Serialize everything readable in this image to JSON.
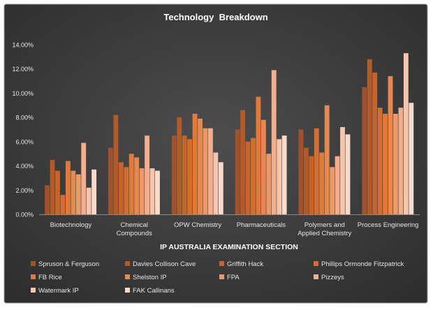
{
  "chart_data": {
    "type": "bar",
    "title": "Technology  Breakdown",
    "xlabel": "IP AUSTRALIA EXAMINATION SECTION",
    "ylabel": "",
    "ylim": [
      0,
      14
    ],
    "ytick_labels": [
      "0.00%",
      "2.00%",
      "4.00%",
      "6.00%",
      "8.00%",
      "10.00%",
      "12.00%",
      "14.00%"
    ],
    "grid": false,
    "legend_position": "bottom",
    "categories": [
      "Biotechnology",
      "Chemical\nCompounds",
      "OPW Chemistry",
      "Pharmaceuticals",
      "Polymers and\nApplied Chemistry",
      "Process Engineering"
    ],
    "series": [
      {
        "name": "Spruson & Ferguson",
        "color": "#a0522d",
        "values": [
          2.4,
          5.5,
          6.5,
          7.0,
          7.0,
          10.5
        ]
      },
      {
        "name": "Davies Collison Cave",
        "color": "#b25a2a",
        "values": [
          4.5,
          8.2,
          8.0,
          8.6,
          5.5,
          12.8
        ]
      },
      {
        "name": "Griffith Hack",
        "color": "#c8642a",
        "values": [
          3.6,
          4.3,
          6.5,
          6.0,
          4.8,
          11.7
        ]
      },
      {
        "name": "Phillips Ormonde Fitzpatrick",
        "color": "#d36e2e",
        "values": [
          1.6,
          3.9,
          6.2,
          6.3,
          7.1,
          8.8
        ]
      },
      {
        "name": "FB Rice",
        "color": "#e07a38",
        "values": [
          4.4,
          5.0,
          8.3,
          9.7,
          5.1,
          8.3
        ]
      },
      {
        "name": "Shelston IP",
        "color": "#e68850",
        "values": [
          3.6,
          4.7,
          7.9,
          7.8,
          9.0,
          11.4
        ]
      },
      {
        "name": "FPA",
        "color": "#ec9868",
        "values": [
          3.3,
          3.8,
          7.1,
          5.0,
          3.9,
          8.3
        ]
      },
      {
        "name": "Pizzeys",
        "color": "#f2ae8e",
        "values": [
          5.9,
          6.5,
          7.1,
          11.9,
          4.8,
          8.8
        ]
      },
      {
        "name": "Watermark IP",
        "color": "#f6c5ac",
        "values": [
          2.2,
          3.8,
          5.1,
          6.2,
          7.2,
          13.3
        ]
      },
      {
        "name": "FAK Callinans",
        "color": "#fadacb",
        "values": [
          3.7,
          3.6,
          4.3,
          6.5,
          6.6,
          9.2
        ]
      }
    ]
  }
}
